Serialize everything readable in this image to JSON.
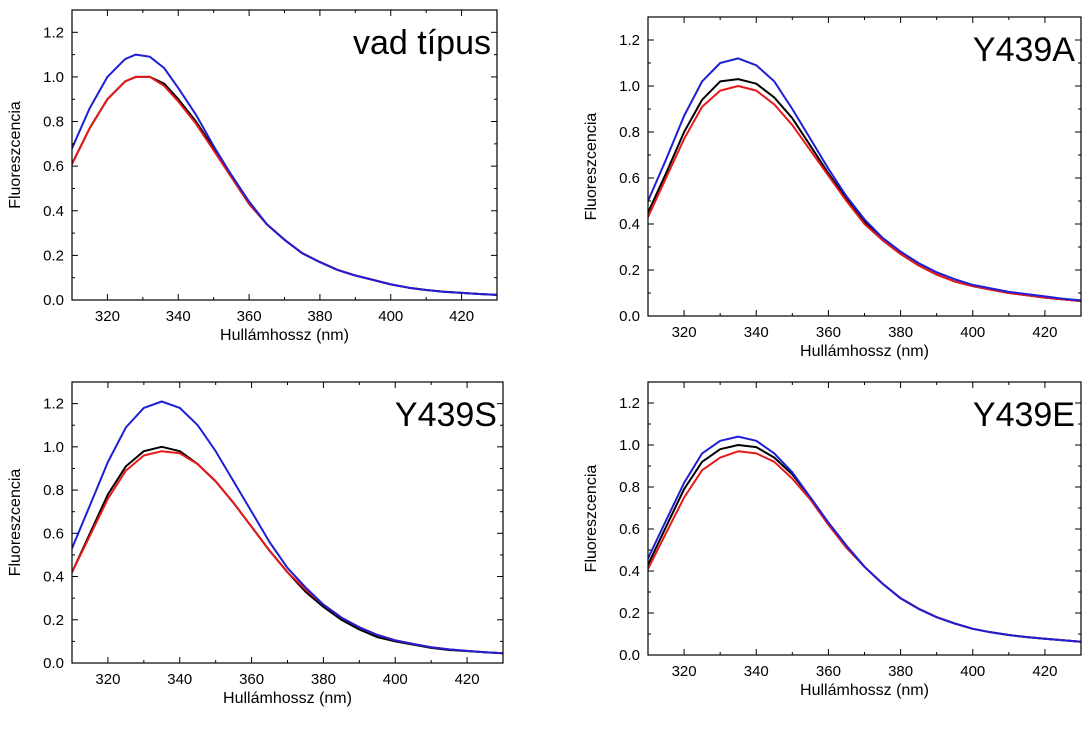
{
  "chart_data": [
    {
      "type": "line",
      "title": "vad típus",
      "xlabel": "Hullámhossz (nm)",
      "ylabel": "Fluoreszcencia",
      "xlim": [
        310,
        430
      ],
      "ylim": [
        0,
        1.3
      ],
      "xticks": [
        320,
        340,
        360,
        380,
        400,
        420
      ],
      "yticks": [
        0.0,
        0.2,
        0.4,
        0.6,
        0.8,
        1.0,
        1.2
      ],
      "grid": false,
      "x": [
        310,
        315,
        320,
        325,
        328,
        332,
        336,
        340,
        345,
        350,
        355,
        360,
        365,
        370,
        375,
        380,
        385,
        390,
        395,
        400,
        405,
        410,
        415,
        420,
        425,
        430
      ],
      "series": [
        {
          "color": "#000000",
          "values": [
            0.61,
            0.77,
            0.9,
            0.98,
            1.0,
            1.0,
            0.97,
            0.9,
            0.8,
            0.68,
            0.56,
            0.44,
            0.34,
            0.27,
            0.21,
            0.17,
            0.135,
            0.11,
            0.09,
            0.07,
            0.055,
            0.045,
            0.037,
            0.032,
            0.027,
            0.023
          ]
        },
        {
          "color": "#e8191a",
          "values": [
            0.61,
            0.77,
            0.9,
            0.98,
            1.0,
            1.0,
            0.96,
            0.89,
            0.79,
            0.67,
            0.55,
            0.43,
            0.34,
            0.27,
            0.21,
            0.17,
            0.135,
            0.11,
            0.09,
            0.07,
            0.055,
            0.045,
            0.037,
            0.032,
            0.027,
            0.023
          ]
        },
        {
          "color": "#1f1fd6",
          "values": [
            0.68,
            0.86,
            1.0,
            1.08,
            1.1,
            1.09,
            1.04,
            0.95,
            0.83,
            0.69,
            0.56,
            0.44,
            0.34,
            0.27,
            0.21,
            0.17,
            0.135,
            0.11,
            0.09,
            0.07,
            0.055,
            0.045,
            0.037,
            0.032,
            0.027,
            0.023
          ]
        }
      ]
    },
    {
      "type": "line",
      "title": "Y439A",
      "xlabel": "Hullámhossz (nm)",
      "ylabel": "Fluoreszcencia",
      "xlim": [
        310,
        430
      ],
      "ylim": [
        0,
        1.3
      ],
      "xticks": [
        320,
        340,
        360,
        380,
        400,
        420
      ],
      "yticks": [
        0.0,
        0.2,
        0.4,
        0.6,
        0.8,
        1.0,
        1.2
      ],
      "grid": false,
      "x": [
        310,
        315,
        320,
        325,
        330,
        335,
        340,
        345,
        350,
        355,
        360,
        365,
        370,
        375,
        380,
        385,
        390,
        395,
        400,
        405,
        410,
        415,
        420,
        425,
        430
      ],
      "series": [
        {
          "color": "#000000",
          "values": [
            0.45,
            0.62,
            0.8,
            0.94,
            1.02,
            1.03,
            1.01,
            0.95,
            0.86,
            0.74,
            0.62,
            0.51,
            0.41,
            0.33,
            0.27,
            0.22,
            0.18,
            0.15,
            0.13,
            0.115,
            0.1,
            0.09,
            0.08,
            0.072,
            0.065
          ]
        },
        {
          "color": "#e8191a",
          "values": [
            0.43,
            0.6,
            0.77,
            0.91,
            0.98,
            1.0,
            0.98,
            0.92,
            0.83,
            0.72,
            0.61,
            0.5,
            0.4,
            0.33,
            0.27,
            0.22,
            0.18,
            0.15,
            0.13,
            0.115,
            0.1,
            0.09,
            0.08,
            0.072,
            0.065
          ]
        },
        {
          "color": "#1f1fd6",
          "values": [
            0.5,
            0.68,
            0.87,
            1.02,
            1.1,
            1.12,
            1.09,
            1.02,
            0.9,
            0.77,
            0.64,
            0.52,
            0.42,
            0.34,
            0.28,
            0.23,
            0.19,
            0.16,
            0.135,
            0.12,
            0.105,
            0.095,
            0.085,
            0.075,
            0.068
          ]
        }
      ]
    },
    {
      "type": "line",
      "title": "Y439S",
      "xlabel": "Hullámhossz (nm)",
      "ylabel": "Fluoreszcencia",
      "xlim": [
        310,
        430
      ],
      "ylim": [
        0,
        1.3
      ],
      "xticks": [
        320,
        340,
        360,
        380,
        400,
        420
      ],
      "yticks": [
        0.0,
        0.2,
        0.4,
        0.6,
        0.8,
        1.0,
        1.2
      ],
      "grid": false,
      "x": [
        310,
        315,
        320,
        325,
        330,
        335,
        340,
        345,
        350,
        355,
        360,
        365,
        370,
        375,
        380,
        385,
        390,
        395,
        400,
        405,
        410,
        415,
        420,
        425,
        430
      ],
      "series": [
        {
          "color": "#000000",
          "values": [
            0.42,
            0.6,
            0.78,
            0.91,
            0.98,
            1.0,
            0.98,
            0.92,
            0.84,
            0.74,
            0.63,
            0.52,
            0.42,
            0.33,
            0.26,
            0.2,
            0.155,
            0.12,
            0.1,
            0.085,
            0.07,
            0.06,
            0.055,
            0.05,
            0.045
          ]
        },
        {
          "color": "#e8191a",
          "values": [
            0.42,
            0.59,
            0.76,
            0.89,
            0.96,
            0.98,
            0.97,
            0.92,
            0.84,
            0.74,
            0.63,
            0.52,
            0.42,
            0.34,
            0.27,
            0.21,
            0.165,
            0.13,
            0.105,
            0.088,
            0.073,
            0.063,
            0.056,
            0.05,
            0.045
          ]
        },
        {
          "color": "#1f1fd6",
          "values": [
            0.53,
            0.73,
            0.93,
            1.09,
            1.18,
            1.21,
            1.18,
            1.1,
            0.98,
            0.84,
            0.7,
            0.56,
            0.44,
            0.35,
            0.27,
            0.21,
            0.165,
            0.13,
            0.105,
            0.088,
            0.073,
            0.063,
            0.056,
            0.05,
            0.045
          ]
        }
      ]
    },
    {
      "type": "line",
      "title": "Y439E",
      "xlabel": "Hullámhossz (nm)",
      "ylabel": "Fluoreszcencia",
      "xlim": [
        310,
        430
      ],
      "ylim": [
        0,
        1.3
      ],
      "xticks": [
        320,
        340,
        360,
        380,
        400,
        420
      ],
      "yticks": [
        0.0,
        0.2,
        0.4,
        0.6,
        0.8,
        1.0,
        1.2
      ],
      "grid": false,
      "x": [
        310,
        315,
        320,
        325,
        330,
        335,
        340,
        345,
        350,
        355,
        360,
        365,
        370,
        375,
        380,
        385,
        390,
        395,
        400,
        405,
        410,
        415,
        420,
        425,
        430
      ],
      "series": [
        {
          "color": "#000000",
          "values": [
            0.43,
            0.61,
            0.79,
            0.92,
            0.98,
            1.0,
            0.99,
            0.94,
            0.86,
            0.75,
            0.63,
            0.52,
            0.42,
            0.34,
            0.27,
            0.22,
            0.18,
            0.15,
            0.125,
            0.108,
            0.095,
            0.085,
            0.077,
            0.07,
            0.063
          ]
        },
        {
          "color": "#e8191a",
          "values": [
            0.41,
            0.58,
            0.75,
            0.88,
            0.94,
            0.97,
            0.96,
            0.92,
            0.84,
            0.74,
            0.62,
            0.51,
            0.42,
            0.34,
            0.27,
            0.22,
            0.18,
            0.15,
            0.125,
            0.108,
            0.095,
            0.085,
            0.077,
            0.07,
            0.063
          ]
        },
        {
          "color": "#1f1fd6",
          "values": [
            0.46,
            0.64,
            0.82,
            0.96,
            1.02,
            1.04,
            1.02,
            0.96,
            0.87,
            0.75,
            0.63,
            0.52,
            0.42,
            0.34,
            0.27,
            0.22,
            0.18,
            0.15,
            0.125,
            0.108,
            0.095,
            0.085,
            0.077,
            0.07,
            0.063
          ]
        }
      ]
    }
  ]
}
